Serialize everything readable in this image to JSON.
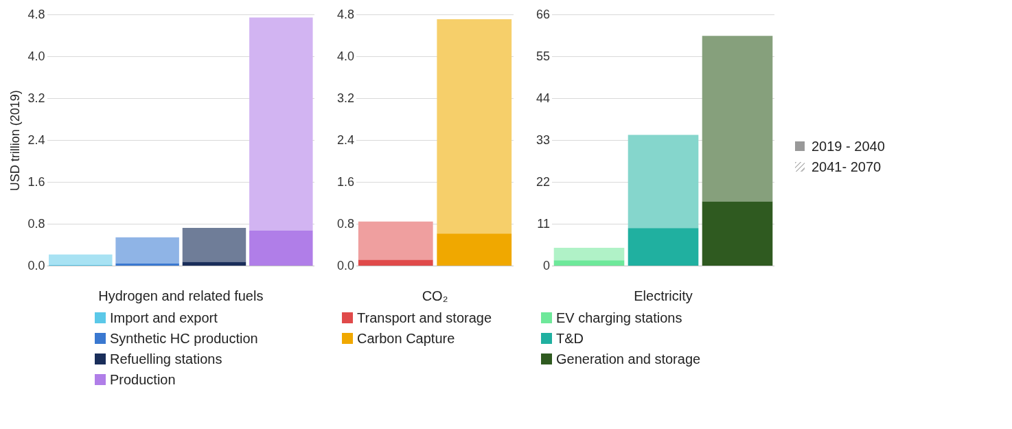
{
  "chart_data": [
    {
      "type": "bar",
      "xlabel": "Hydrogen and related fuels",
      "ylabel": "USD trillion (2019)",
      "categories": [
        null,
        null,
        null,
        null
      ],
      "stacked": true,
      "grid": "y",
      "legend": "bottom",
      "ylim": [
        0,
        4.8
      ],
      "yticks": [
        {
          "value": 0,
          "label": "0.0"
        },
        {
          "value": 0.8,
          "label": "0.8"
        },
        {
          "value": 1.6,
          "label": "1.6"
        },
        {
          "value": 2.4,
          "label": "2.4"
        },
        {
          "value": 3.2,
          "label": "3.2"
        },
        {
          "value": 4,
          "label": "4.0"
        },
        {
          "value": 4.8,
          "label": "4.8"
        }
      ],
      "series": [
        {
          "name": "Import and export",
          "color": "#5bc8e8",
          "values": [
            0.02,
            null,
            null,
            null
          ]
        },
        {
          "color": "#a8e2f3",
          "values": [
            0.2,
            null,
            null,
            null
          ]
        },
        {
          "name": "Synthetic HC production",
          "color": "#3a78d0",
          "values": [
            null,
            0.05,
            null,
            null
          ]
        },
        {
          "color": "#8fb4e6",
          "values": [
            null,
            0.5,
            null,
            null
          ]
        },
        {
          "name": "Refuelling stations",
          "color": "#1a2e5a",
          "values": [
            null,
            null,
            0.08,
            null
          ]
        },
        {
          "color": "#6f7d98",
          "values": [
            null,
            null,
            0.65,
            null
          ]
        },
        {
          "name": "Production",
          "color": "#b07ee8",
          "values": [
            null,
            null,
            null,
            0.68
          ]
        },
        {
          "color": "#d2b4f2",
          "values": [
            null,
            null,
            null,
            4.07
          ]
        }
      ]
    },
    {
      "type": "bar",
      "xlabel": "CO₂",
      "categories": [
        null,
        null
      ],
      "stacked": true,
      "grid": "y",
      "legend": "bottom",
      "ylim": [
        0,
        4.8
      ],
      "yticks": [
        {
          "value": 0,
          "label": "0.0"
        },
        {
          "value": 0.8,
          "label": "0.8"
        },
        {
          "value": 1.6,
          "label": "1.6"
        },
        {
          "value": 2.4,
          "label": "2.4"
        },
        {
          "value": 3.2,
          "label": "3.2"
        },
        {
          "value": 4,
          "label": "4.0"
        },
        {
          "value": 4.8,
          "label": "4.8"
        }
      ],
      "series": [
        {
          "name": "Transport and storage",
          "color": "#e04a4a",
          "values": [
            0.12,
            null
          ]
        },
        {
          "color": "#ef9f9f",
          "values": [
            0.73,
            null
          ]
        },
        {
          "name": "Carbon Capture",
          "color": "#f0a800",
          "values": [
            null,
            0.62
          ]
        },
        {
          "color": "#f6cf6a",
          "values": [
            null,
            4.1
          ]
        }
      ]
    },
    {
      "type": "bar",
      "xlabel": "Electricity",
      "categories": [
        null,
        null,
        null
      ],
      "stacked": true,
      "grid": "y",
      "legend": "bottom",
      "ylim": [
        0,
        66
      ],
      "yticks": [
        0,
        11,
        22,
        33,
        44,
        55,
        66
      ],
      "series": [
        {
          "name": "EV charging stations",
          "color": "#6ee89a",
          "values": [
            1.5,
            null,
            null
          ]
        },
        {
          "color": "#b0f2c7",
          "values": [
            3.3,
            null,
            null
          ]
        },
        {
          "name": "T&D",
          "color": "#20b0a0",
          "values": [
            null,
            10,
            null
          ]
        },
        {
          "color": "#85d6cc",
          "values": [
            null,
            24.5,
            null
          ]
        },
        {
          "name": "Generation and storage",
          "color": "#2f5a20",
          "values": [
            null,
            null,
            17
          ]
        },
        {
          "color": "#86a07c",
          "values": [
            null,
            null,
            43.5
          ]
        }
      ]
    },
    {
      "type": "other",
      "annotations": [
        "2019 - 2040",
        "2041- 2070"
      ]
    }
  ]
}
